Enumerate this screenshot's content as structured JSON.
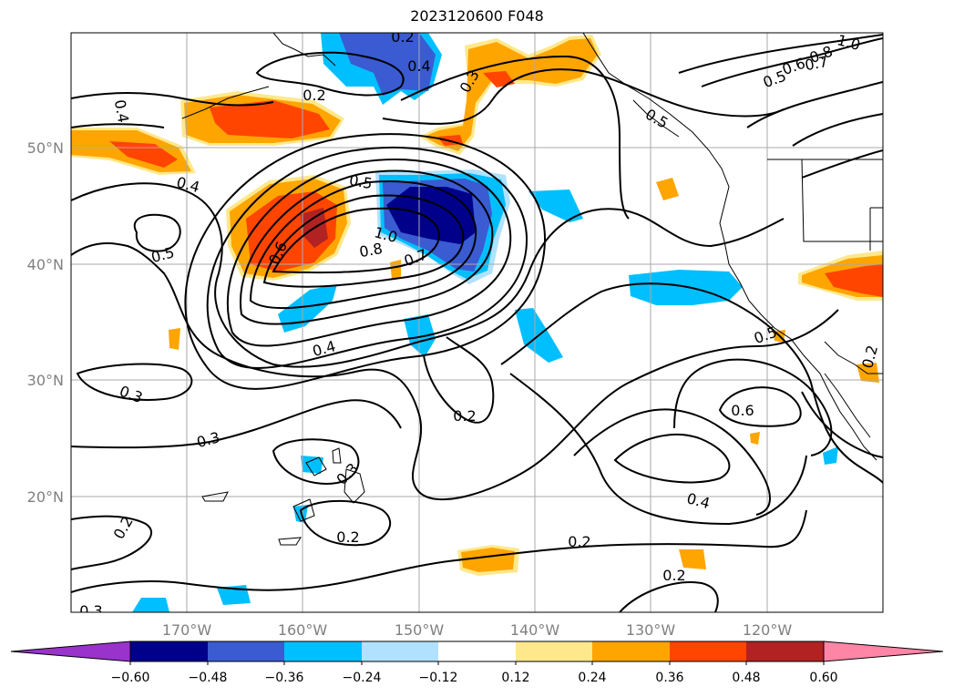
{
  "title": "2023120600 F048",
  "map": {
    "lat_labels": [
      "50°N",
      "40°N",
      "30°N",
      "20°N"
    ],
    "lon_labels": [
      "170°W",
      "160°W",
      "150°W",
      "140°W",
      "130°W",
      "120°W"
    ],
    "contour_labels": [
      "0.4",
      "0.5",
      "0.2",
      "0.3",
      "0.4",
      "0.8",
      "0.7",
      "1.0",
      "0.6",
      "0.5",
      "0.4",
      "0.5",
      "0.5",
      "1.0",
      "0.8",
      "0.7",
      "0.6",
      "0.4",
      "0.3",
      "0.3",
      "0.2",
      "0.3",
      "0.2",
      "0.2",
      "0.4",
      "0.6",
      "0.2",
      "0.2",
      "0.5",
      "0.2",
      "0.2",
      "0.3"
    ],
    "colorbar": {
      "ticks": [
        "−0.60",
        "−0.48",
        "−0.36",
        "−0.24",
        "−0.12",
        "0.12",
        "0.24",
        "0.36",
        "0.48",
        "0.60"
      ],
      "colors": [
        "#9933cc",
        "#00008b",
        "#3a5bd1",
        "#00bfff",
        "#b0e2ff",
        "#ffffff",
        "#ffe88c",
        "#ffa500",
        "#ff4500",
        "#b22222",
        "#ff85a6"
      ]
    }
  }
}
